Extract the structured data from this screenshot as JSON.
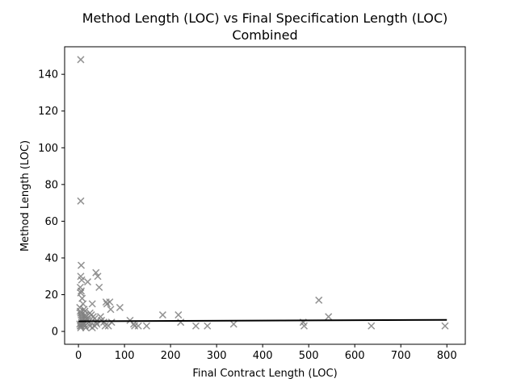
{
  "chart_data": {
    "type": "scatter",
    "title": "Method Length (LOC) vs Final Specification Length (LOC)",
    "subtitle": "Combined",
    "xlabel": "Final Contract Length (LOC)",
    "ylabel": "Method Length (LOC)",
    "xlim": [
      -30,
      840
    ],
    "ylim": [
      -7,
      155
    ],
    "xticks": [
      0,
      100,
      200,
      300,
      400,
      500,
      600,
      700,
      800
    ],
    "yticks": [
      0,
      20,
      40,
      60,
      80,
      100,
      120,
      140
    ],
    "grid": false,
    "legend": "none",
    "marker": "x",
    "marker_color": "#808080",
    "points": [
      [
        5,
        148
      ],
      [
        5,
        71
      ],
      [
        6,
        36
      ],
      [
        5,
        30
      ],
      [
        7,
        28
      ],
      [
        4,
        24
      ],
      [
        6,
        22
      ],
      [
        5,
        21
      ],
      [
        8,
        18
      ],
      [
        10,
        15
      ],
      [
        3,
        13
      ],
      [
        4,
        11
      ],
      [
        5,
        10
      ],
      [
        6,
        9
      ],
      [
        7,
        8
      ],
      [
        8,
        7
      ],
      [
        9,
        6
      ],
      [
        10,
        5
      ],
      [
        3,
        4
      ],
      [
        4,
        3
      ],
      [
        5,
        2
      ],
      [
        6,
        3
      ],
      [
        7,
        4
      ],
      [
        12,
        12
      ],
      [
        14,
        11
      ],
      [
        15,
        9
      ],
      [
        16,
        8
      ],
      [
        18,
        7
      ],
      [
        20,
        6
      ],
      [
        22,
        5
      ],
      [
        12,
        4
      ],
      [
        14,
        3
      ],
      [
        16,
        2
      ],
      [
        20,
        27
      ],
      [
        25,
        10
      ],
      [
        28,
        9
      ],
      [
        30,
        15
      ],
      [
        32,
        8
      ],
      [
        35,
        7
      ],
      [
        38,
        5
      ],
      [
        40,
        4
      ],
      [
        25,
        3
      ],
      [
        30,
        2
      ],
      [
        35,
        3
      ],
      [
        38,
        32
      ],
      [
        42,
        30
      ],
      [
        45,
        24
      ],
      [
        48,
        8
      ],
      [
        50,
        6
      ],
      [
        55,
        5
      ],
      [
        58,
        3
      ],
      [
        60,
        16
      ],
      [
        62,
        15
      ],
      [
        68,
        16
      ],
      [
        70,
        12
      ],
      [
        72,
        5
      ],
      [
        65,
        3
      ],
      [
        90,
        13
      ],
      [
        112,
        6
      ],
      [
        120,
        4
      ],
      [
        122,
        3
      ],
      [
        130,
        3
      ],
      [
        148,
        3
      ],
      [
        183,
        9
      ],
      [
        217,
        9
      ],
      [
        222,
        5
      ],
      [
        255,
        3
      ],
      [
        280,
        3
      ],
      [
        337,
        4
      ],
      [
        488,
        5
      ],
      [
        490,
        3
      ],
      [
        522,
        17
      ],
      [
        543,
        8
      ],
      [
        636,
        3
      ],
      [
        796,
        3
      ]
    ],
    "trend_line": {
      "x": [
        0,
        800
      ],
      "y": [
        5.5,
        6.3
      ],
      "color": "#000000"
    }
  }
}
